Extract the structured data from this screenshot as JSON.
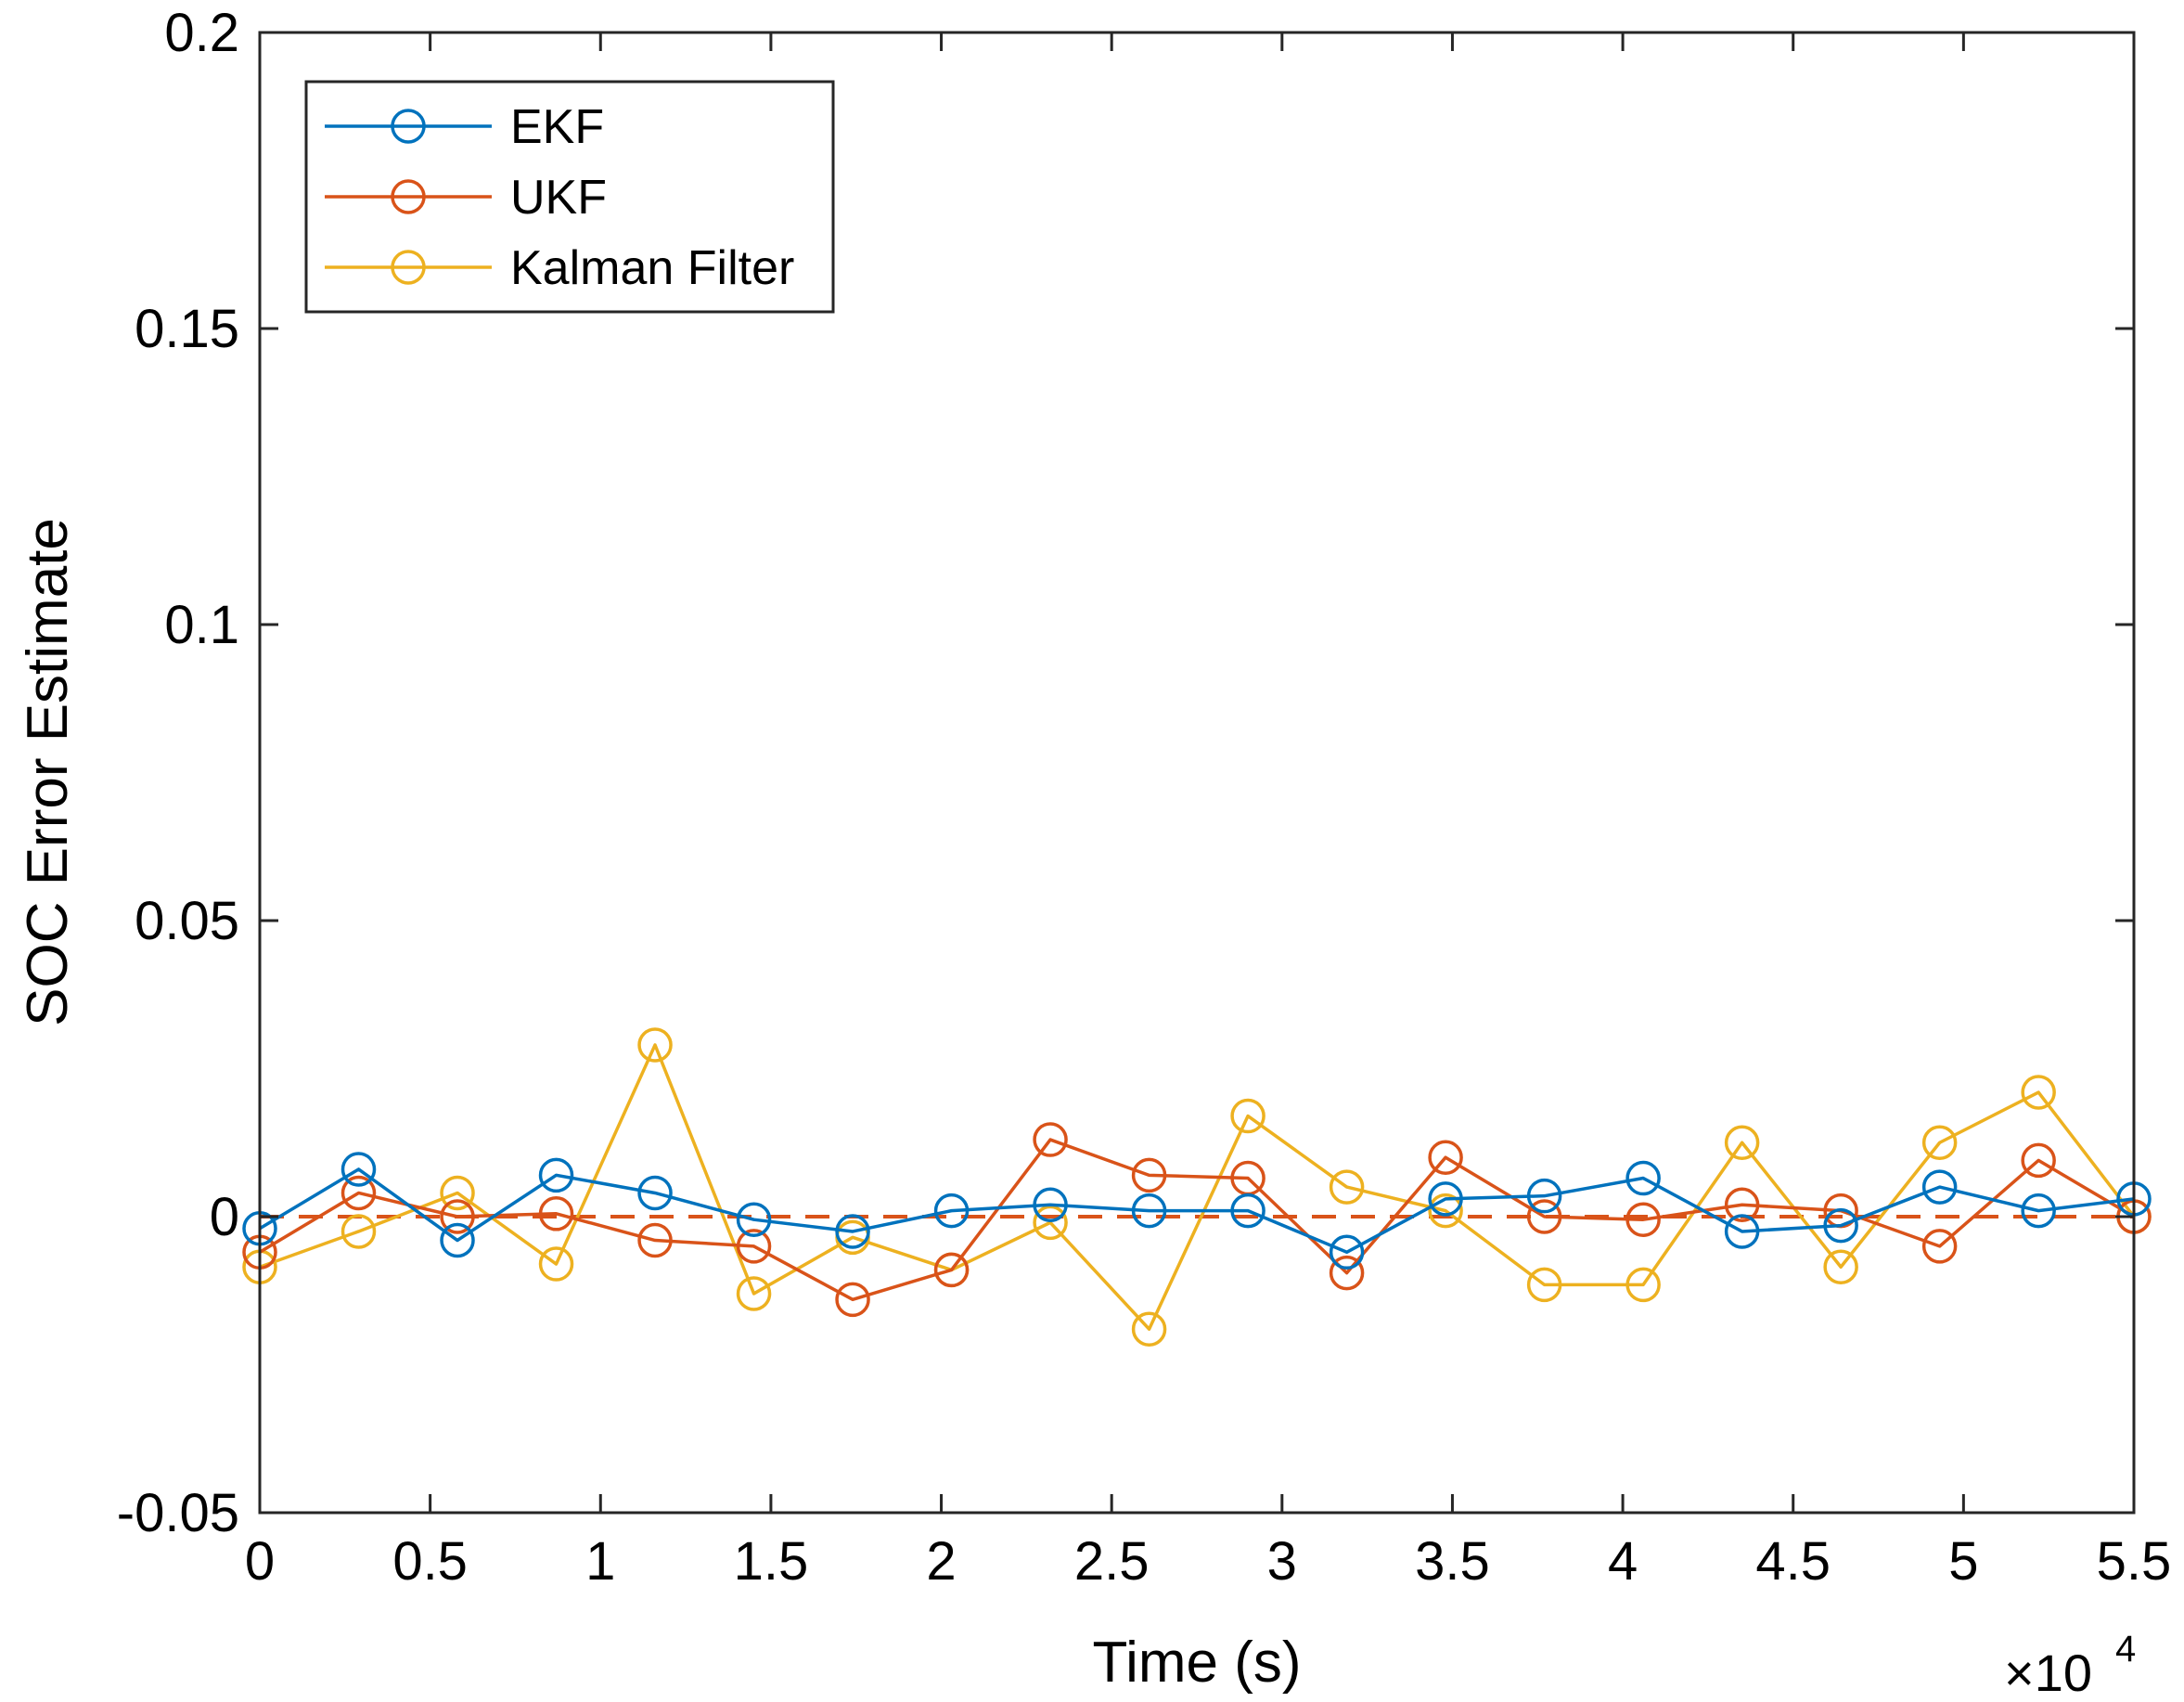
{
  "chart_data": {
    "type": "line",
    "title": "",
    "xlabel": "Time (s)",
    "ylabel": "SOC Error Estimate",
    "x_exponent": {
      "base": "×10",
      "power": "4"
    },
    "xlim": [
      0,
      5.5
    ],
    "ylim": [
      -0.05,
      0.2
    ],
    "xticks": [
      0,
      0.5,
      1,
      1.5,
      2,
      2.5,
      3,
      3.5,
      4,
      4.5,
      5,
      5.5
    ],
    "xtick_labels": [
      "0",
      "0.5",
      "1",
      "1.5",
      "2",
      "2.5",
      "3",
      "3.5",
      "4",
      "4.5",
      "5",
      "5.5"
    ],
    "yticks": [
      -0.05,
      0,
      0.05,
      0.1,
      0.15,
      0.2
    ],
    "ytick_labels": [
      "-0.05",
      "0",
      "0.05",
      "0.1",
      "0.15",
      "0.2"
    ],
    "grid": false,
    "legend_position": "top-left",
    "x": [
      0,
      0.29,
      0.58,
      0.87,
      1.16,
      1.45,
      1.74,
      2.03,
      2.32,
      2.61,
      2.9,
      3.19,
      3.48,
      3.77,
      4.06,
      4.35,
      4.64,
      4.93,
      5.22,
      5.5
    ],
    "series": [
      {
        "name": "EKF",
        "color": "#0072BD",
        "values": [
          -0.002,
          0.008,
          -0.004,
          0.007,
          0.004,
          -0.0005,
          -0.0025,
          0.001,
          0.002,
          0.001,
          0.001,
          -0.006,
          0.003,
          0.0035,
          0.0065,
          -0.0025,
          -0.0015,
          0.005,
          0.001,
          0.003
        ]
      },
      {
        "name": "UKF",
        "color": "#D95319",
        "values": [
          -0.006,
          0.004,
          0.0,
          0.0005,
          -0.004,
          -0.005,
          -0.014,
          -0.009,
          0.013,
          0.007,
          0.0065,
          -0.0095,
          0.01,
          0.0,
          -0.0005,
          0.002,
          0.001,
          -0.005,
          0.0095,
          0.0
        ]
      },
      {
        "name": "Kalman Filter",
        "color": "#EDB120",
        "values": [
          -0.0085,
          -0.0025,
          0.004,
          -0.008,
          0.029,
          -0.013,
          -0.0035,
          -0.009,
          -0.001,
          -0.019,
          0.017,
          0.005,
          0.001,
          -0.0115,
          -0.0115,
          0.0125,
          -0.0085,
          0.0125,
          0.021,
          0.0
        ]
      }
    ],
    "reference_line": {
      "value": 0,
      "color": "#D95319",
      "style": "dashed"
    }
  }
}
